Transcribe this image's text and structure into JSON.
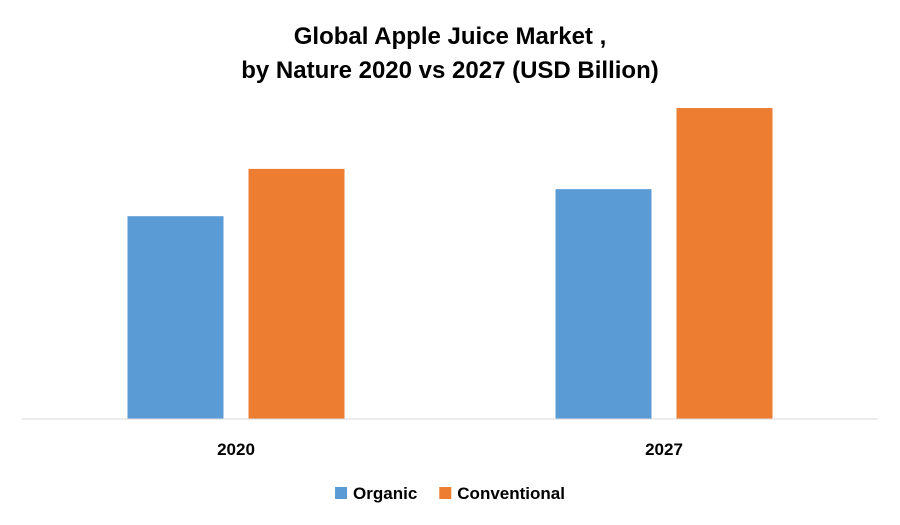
{
  "chart_data": {
    "type": "bar",
    "title": "Global Apple Juice Market ,",
    "subtitle": "by Nature 2020 vs 2027 (USD Billion)",
    "categories": [
      "2020",
      "2027"
    ],
    "series": [
      {
        "name": "Organic",
        "color": "#5B9BD5",
        "values": [
          3.0,
          3.4
        ]
      },
      {
        "name": "Conventional",
        "color": "#ED7D31",
        "values": [
          3.7,
          4.6
        ]
      }
    ],
    "ylim": [
      0,
      5
    ],
    "grid": false,
    "y_axis_visible": false,
    "legend_position": "bottom"
  }
}
